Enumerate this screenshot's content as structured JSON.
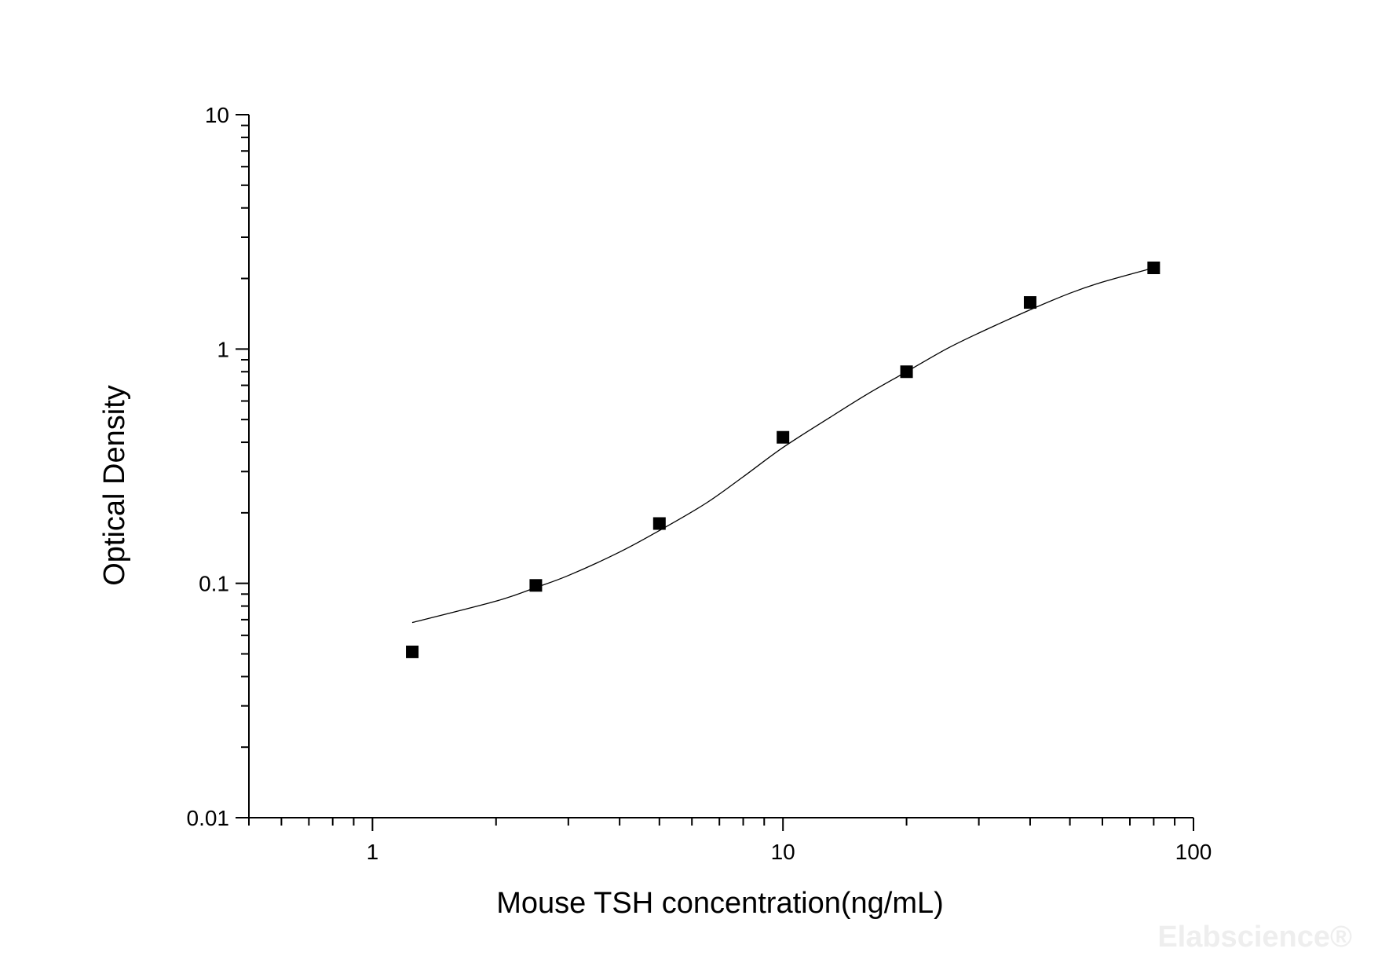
{
  "chart_data": {
    "type": "scatter",
    "xlabel": "Mouse TSH concentration(ng/mL)",
    "ylabel": "Optical Density",
    "x_scale": "log",
    "y_scale": "log",
    "xlim": [
      0.5,
      100
    ],
    "ylim": [
      0.01,
      10
    ],
    "x_ticks": [
      {
        "value": 1,
        "label": "1"
      },
      {
        "value": 10,
        "label": "10"
      },
      {
        "value": 100,
        "label": "100"
      }
    ],
    "y_ticks": [
      {
        "value": 0.01,
        "label": "0.01"
      },
      {
        "value": 0.1,
        "label": "0.1"
      },
      {
        "value": 1,
        "label": "1"
      },
      {
        "value": 10,
        "label": "10"
      }
    ],
    "grid": false,
    "legend": "none",
    "marker": "square",
    "marker_color": "#000000",
    "line_color": "#000000",
    "series": [
      {
        "x": [
          1.25,
          2.5,
          5,
          10,
          20,
          40,
          80
        ],
        "y": [
          0.051,
          0.098,
          0.18,
          0.42,
          0.8,
          1.58,
          2.22
        ]
      }
    ],
    "fit_curve": {
      "x": [
        1.25,
        2.0,
        2.5,
        3.0,
        4.0,
        5.0,
        6.5,
        8.0,
        10,
        13,
        16,
        20,
        25,
        30,
        40,
        50,
        60,
        80
      ],
      "y": [
        0.068,
        0.084,
        0.096,
        0.108,
        0.136,
        0.168,
        0.22,
        0.285,
        0.38,
        0.51,
        0.64,
        0.8,
        1.0,
        1.17,
        1.47,
        1.73,
        1.93,
        2.22
      ]
    }
  },
  "watermark": "Elabscience®"
}
